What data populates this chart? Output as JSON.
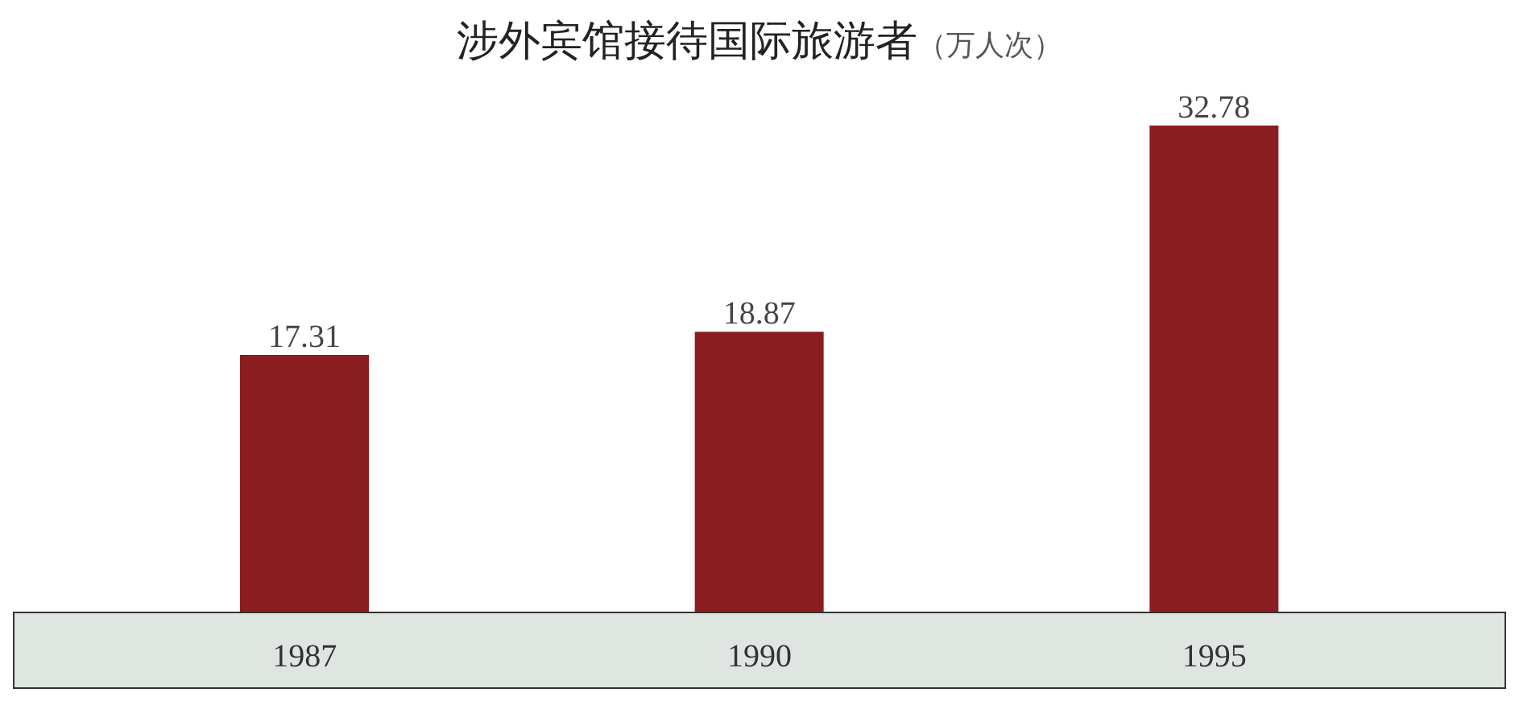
{
  "chart_data": {
    "type": "bar",
    "title": "涉外宾馆接待国际旅游者",
    "subtitle": "（万人次）",
    "categories": [
      "1987",
      "1990",
      "1995"
    ],
    "values": [
      17.31,
      18.87,
      32.78
    ],
    "color": "#8b1c1f",
    "data_labels": true
  }
}
